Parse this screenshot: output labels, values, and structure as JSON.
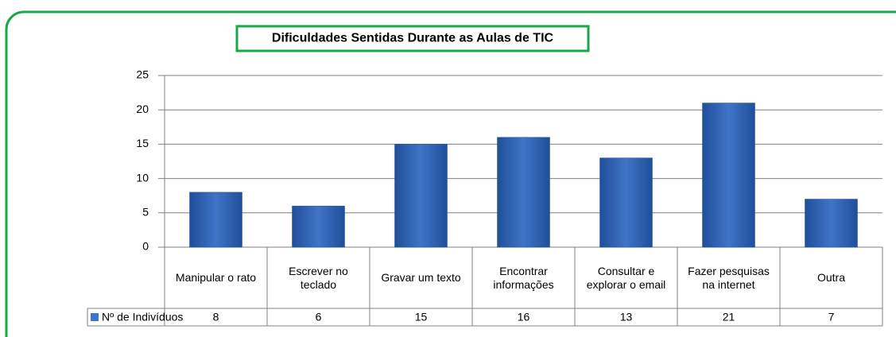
{
  "chart_data": {
    "type": "bar",
    "title": "Dificuldades Sentidas Durante as Aulas de TIC",
    "categories": [
      "Manipular o rato",
      "Escrever no teclado",
      "Gravar um texto",
      "Encontrar informações",
      "Consultar e explorar o email",
      "Fazer pesquisas na internet",
      "Outra"
    ],
    "series": [
      {
        "name": "Nº de Indivíduos",
        "color": "#3f74c6",
        "values": [
          8,
          6,
          15,
          16,
          13,
          21,
          7
        ]
      }
    ],
    "ylim": [
      0,
      25
    ],
    "yticks": [
      0,
      5,
      10,
      15,
      20,
      25
    ],
    "grid": true,
    "legend": "bottom-left"
  }
}
